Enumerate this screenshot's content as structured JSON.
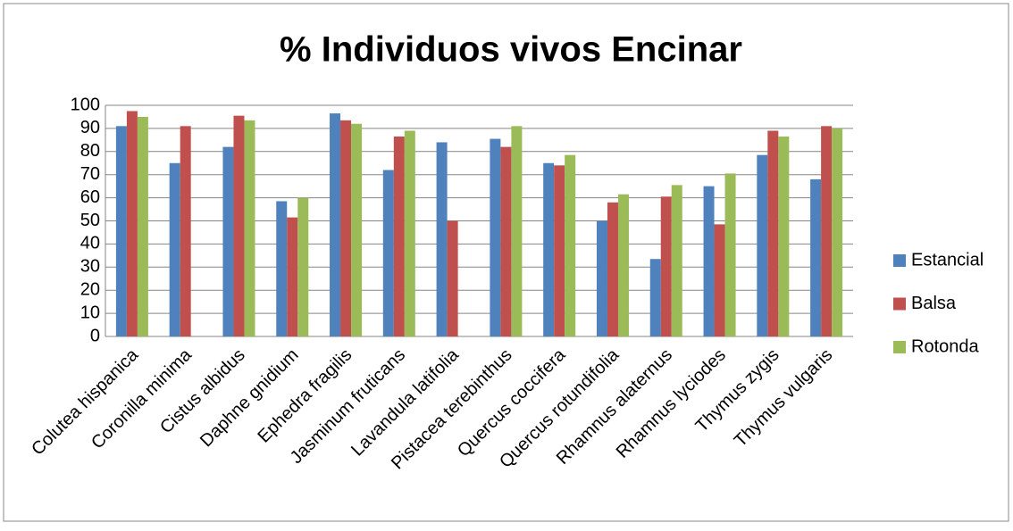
{
  "chart_data": {
    "type": "bar",
    "title": "% Individuos vivos Encinar",
    "categories": [
      "Colutea hispanica",
      "Coronilla minima",
      "Cistus albidus",
      "Daphne gnidium",
      "Ephedra fragilis",
      "Jasminum fruticans",
      "Lavandula latifolia",
      "Pistacea terebinthus",
      "Quercus coccifera",
      "Quercus rotundifolia",
      "Rhamnus alaternus",
      "Rhamnus lyciodes",
      "Thymus zygis",
      "Thymus vulgaris"
    ],
    "series": [
      {
        "name": "Estancial",
        "color": "#4f81bd",
        "values": [
          91,
          75,
          82,
          58.5,
          96.5,
          72,
          84,
          85.5,
          75,
          50,
          33.5,
          65,
          78.5,
          68
        ]
      },
      {
        "name": "Balsa",
        "color": "#c0504d",
        "values": [
          97.5,
          91,
          95.5,
          51.5,
          93.5,
          86.5,
          50,
          82,
          74,
          58,
          60.5,
          48.5,
          89,
          91
        ]
      },
      {
        "name": "Rotonda",
        "color": "#9bbb59",
        "values": [
          95,
          null,
          93.5,
          60,
          92,
          89,
          null,
          91,
          78.5,
          61.5,
          65.5,
          70.5,
          86.5,
          90
        ]
      }
    ],
    "ylim": [
      0,
      100
    ],
    "yticks": [
      0,
      10,
      20,
      30,
      40,
      50,
      60,
      70,
      80,
      90,
      100
    ],
    "grid": true,
    "legend": "right"
  }
}
